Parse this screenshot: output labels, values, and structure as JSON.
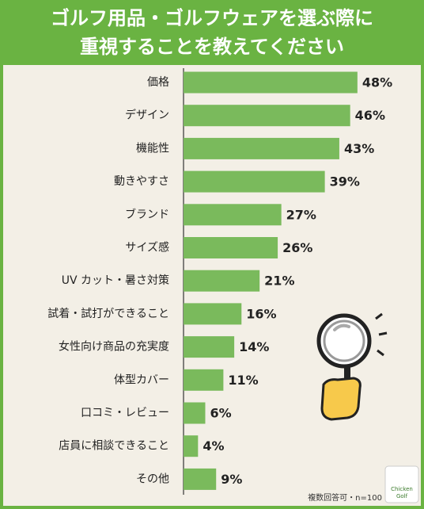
{
  "chart_data": {
    "type": "hbar",
    "title": [
      "ゴルフ用品・ゴルフウェアを選ぶ際に",
      "重視することを教えてください"
    ],
    "categories": [
      "価格",
      "デザイン",
      "機能性",
      "動きやすさ",
      "ブランド",
      "サイズ感",
      "UV カット・暑さ対策",
      "試着・試打ができること",
      "女性向け商品の充実度",
      "体型カバー",
      "口コミ・レビュー",
      "店員に相談できること",
      "その他"
    ],
    "values": [
      48,
      46,
      43,
      39,
      27,
      26,
      21,
      16,
      14,
      11,
      6,
      4,
      9
    ],
    "value_labels": [
      "48%",
      "46%",
      "43%",
      "39%",
      "27%",
      "26%",
      "21%",
      "16%",
      "14%",
      "11%",
      "6%",
      "4%",
      "9%"
    ],
    "color": "#7aba5c",
    "note": "複数回答可・n=100",
    "logo": [
      "Chicken",
      "Golf"
    ]
  }
}
